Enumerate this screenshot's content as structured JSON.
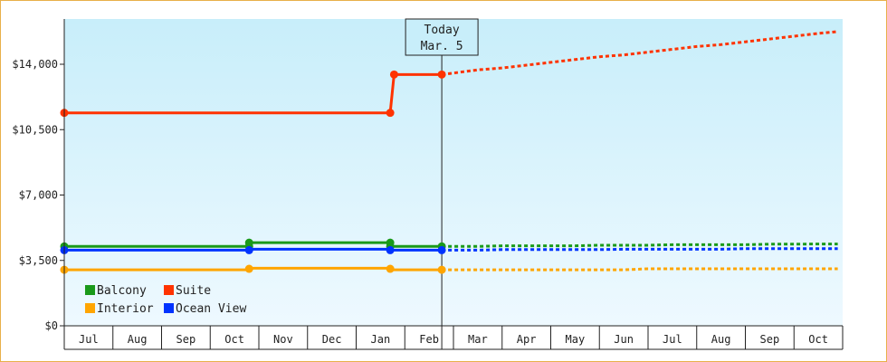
{
  "chart_data": {
    "type": "line",
    "title": "",
    "xlabel": "",
    "ylabel": "",
    "categories": [
      "Jul",
      "Aug",
      "Sep",
      "Oct",
      "Nov",
      "Dec",
      "Jan",
      "Feb",
      "Mar",
      "Apr",
      "May",
      "Jun",
      "Jul",
      "Aug",
      "Sep",
      "Oct"
    ],
    "y_ticks": [
      "$0",
      "$3,500",
      "$7,000",
      "$10,500",
      "$14,000"
    ],
    "ylim": [
      0,
      14000
    ],
    "grid": false,
    "legend_position": "bottom-left",
    "today_marker": {
      "line1": "Today",
      "line2": "Mar. 5",
      "date_index": 7.76
    },
    "series": [
      {
        "name": "Balcony",
        "color": "#1a9a1a",
        "actual": [
          [
            0,
            4250
          ],
          [
            3.8,
            4250
          ],
          [
            3.8,
            4450
          ],
          [
            6.7,
            4450
          ],
          [
            6.7,
            4250
          ],
          [
            7.76,
            4250
          ]
        ],
        "actual_points": [
          [
            0,
            4250
          ],
          [
            3.8,
            4250
          ],
          [
            3.8,
            4450
          ],
          [
            6.7,
            4450
          ],
          [
            6.7,
            4250
          ],
          [
            7.76,
            4250
          ]
        ],
        "forecast": [
          [
            7.76,
            4250
          ],
          [
            8.5,
            4250
          ],
          [
            9.0,
            4280
          ],
          [
            10.5,
            4280
          ],
          [
            11.0,
            4310
          ],
          [
            12.0,
            4310
          ],
          [
            12.5,
            4340
          ],
          [
            14.0,
            4340
          ],
          [
            14.5,
            4370
          ],
          [
            15.9,
            4380
          ]
        ]
      },
      {
        "name": "Suite",
        "color": "#ff3300",
        "actual": [
          [
            0,
            11400
          ],
          [
            6.7,
            11400
          ],
          [
            6.78,
            13450
          ],
          [
            7.76,
            13450
          ]
        ],
        "actual_points": [
          [
            0,
            11400
          ],
          [
            6.7,
            11400
          ],
          [
            6.78,
            13450
          ],
          [
            7.76,
            13450
          ]
        ],
        "forecast": [
          [
            7.76,
            13450
          ],
          [
            8.2,
            13600
          ],
          [
            8.5,
            13700
          ],
          [
            9.0,
            13800
          ],
          [
            9.5,
            13950
          ],
          [
            10.0,
            14100
          ],
          [
            10.5,
            14250
          ],
          [
            11.0,
            14400
          ],
          [
            11.5,
            14500
          ],
          [
            12.0,
            14650
          ],
          [
            12.5,
            14800
          ],
          [
            13.0,
            14950
          ],
          [
            13.5,
            15050
          ],
          [
            14.0,
            15200
          ],
          [
            14.5,
            15350
          ],
          [
            15.0,
            15500
          ],
          [
            15.5,
            15650
          ],
          [
            15.9,
            15750
          ]
        ]
      },
      {
        "name": "Interior",
        "color": "#ffa500",
        "actual": [
          [
            0,
            3000
          ],
          [
            3.8,
            3000
          ],
          [
            3.8,
            3080
          ],
          [
            6.7,
            3080
          ],
          [
            6.7,
            3000
          ],
          [
            7.76,
            3000
          ]
        ],
        "actual_points": [
          [
            0,
            3000
          ],
          [
            3.8,
            3050
          ],
          [
            6.7,
            3050
          ],
          [
            7.76,
            3000
          ]
        ],
        "forecast": [
          [
            7.76,
            3000
          ],
          [
            11.5,
            3000
          ],
          [
            12.0,
            3050
          ],
          [
            15.9,
            3050
          ]
        ]
      },
      {
        "name": "Ocean View",
        "color": "#0033ff",
        "actual": [
          [
            0,
            4050
          ],
          [
            3.8,
            4050
          ],
          [
            3.8,
            4100
          ],
          [
            6.7,
            4100
          ],
          [
            6.7,
            4050
          ],
          [
            7.76,
            4050
          ]
        ],
        "actual_points": [
          [
            0,
            4050
          ],
          [
            3.8,
            4050
          ],
          [
            6.7,
            4050
          ],
          [
            7.76,
            4050
          ]
        ],
        "forecast": [
          [
            7.76,
            4050
          ],
          [
            8.5,
            4050
          ],
          [
            9.0,
            4080
          ],
          [
            11.0,
            4080
          ],
          [
            11.5,
            4100
          ],
          [
            13.5,
            4100
          ],
          [
            14.0,
            4130
          ],
          [
            15.9,
            4130
          ]
        ]
      }
    ]
  }
}
